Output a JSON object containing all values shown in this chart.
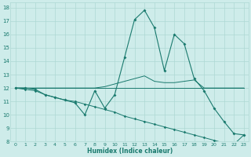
{
  "xlabel": "Humidex (Indice chaleur)",
  "xlim": [
    -0.5,
    23.5
  ],
  "ylim": [
    8,
    18.4
  ],
  "yticks": [
    8,
    9,
    10,
    11,
    12,
    13,
    14,
    15,
    16,
    17,
    18
  ],
  "xticks": [
    0,
    1,
    2,
    3,
    4,
    5,
    6,
    7,
    8,
    9,
    10,
    11,
    12,
    13,
    14,
    15,
    16,
    17,
    18,
    19,
    20,
    21,
    22,
    23
  ],
  "background_color": "#ceecea",
  "grid_color": "#aed8d4",
  "line_color": "#1a7a6e",
  "main_line_x": [
    0,
    1,
    2,
    3,
    4,
    5,
    6,
    7,
    8,
    9,
    10,
    11,
    12,
    13,
    14,
    15,
    16,
    17,
    18,
    19,
    20,
    21,
    22,
    23
  ],
  "main_line_y": [
    12,
    12,
    11.9,
    11.5,
    11.3,
    11.1,
    10.9,
    10.0,
    11.8,
    10.5,
    11.5,
    14.3,
    17.1,
    17.8,
    16.5,
    13.3,
    16.0,
    15.3,
    12.7,
    11.8,
    10.5,
    9.5,
    8.6,
    8.5
  ],
  "upper_line_x": [
    0,
    1,
    2,
    3,
    4,
    5,
    6,
    7,
    8,
    9,
    10,
    11,
    12,
    13,
    14,
    15,
    16,
    17,
    18,
    19,
    20,
    21,
    22,
    23
  ],
  "upper_line_y": [
    12,
    12,
    12,
    12,
    12,
    12,
    12,
    12,
    12,
    12.1,
    12.3,
    12.5,
    12.7,
    12.9,
    12.5,
    12.4,
    12.4,
    12.5,
    12.6,
    12.0,
    12.0,
    12.0,
    12.0,
    12.0
  ],
  "lower_line_x": [
    0,
    1,
    2,
    3,
    4,
    5,
    6,
    7,
    8,
    9,
    10,
    11,
    12,
    13,
    14,
    15,
    16,
    17,
    18,
    19,
    20,
    21,
    22,
    23
  ],
  "lower_line_y": [
    12,
    11.9,
    11.8,
    11.5,
    11.3,
    11.1,
    11.0,
    10.8,
    10.6,
    10.4,
    10.2,
    9.9,
    9.7,
    9.5,
    9.3,
    9.1,
    8.9,
    8.7,
    8.5,
    8.3,
    8.1,
    7.9,
    7.8,
    8.5
  ],
  "flat_line_x": [
    0,
    23
  ],
  "flat_line_y": [
    12,
    12
  ]
}
